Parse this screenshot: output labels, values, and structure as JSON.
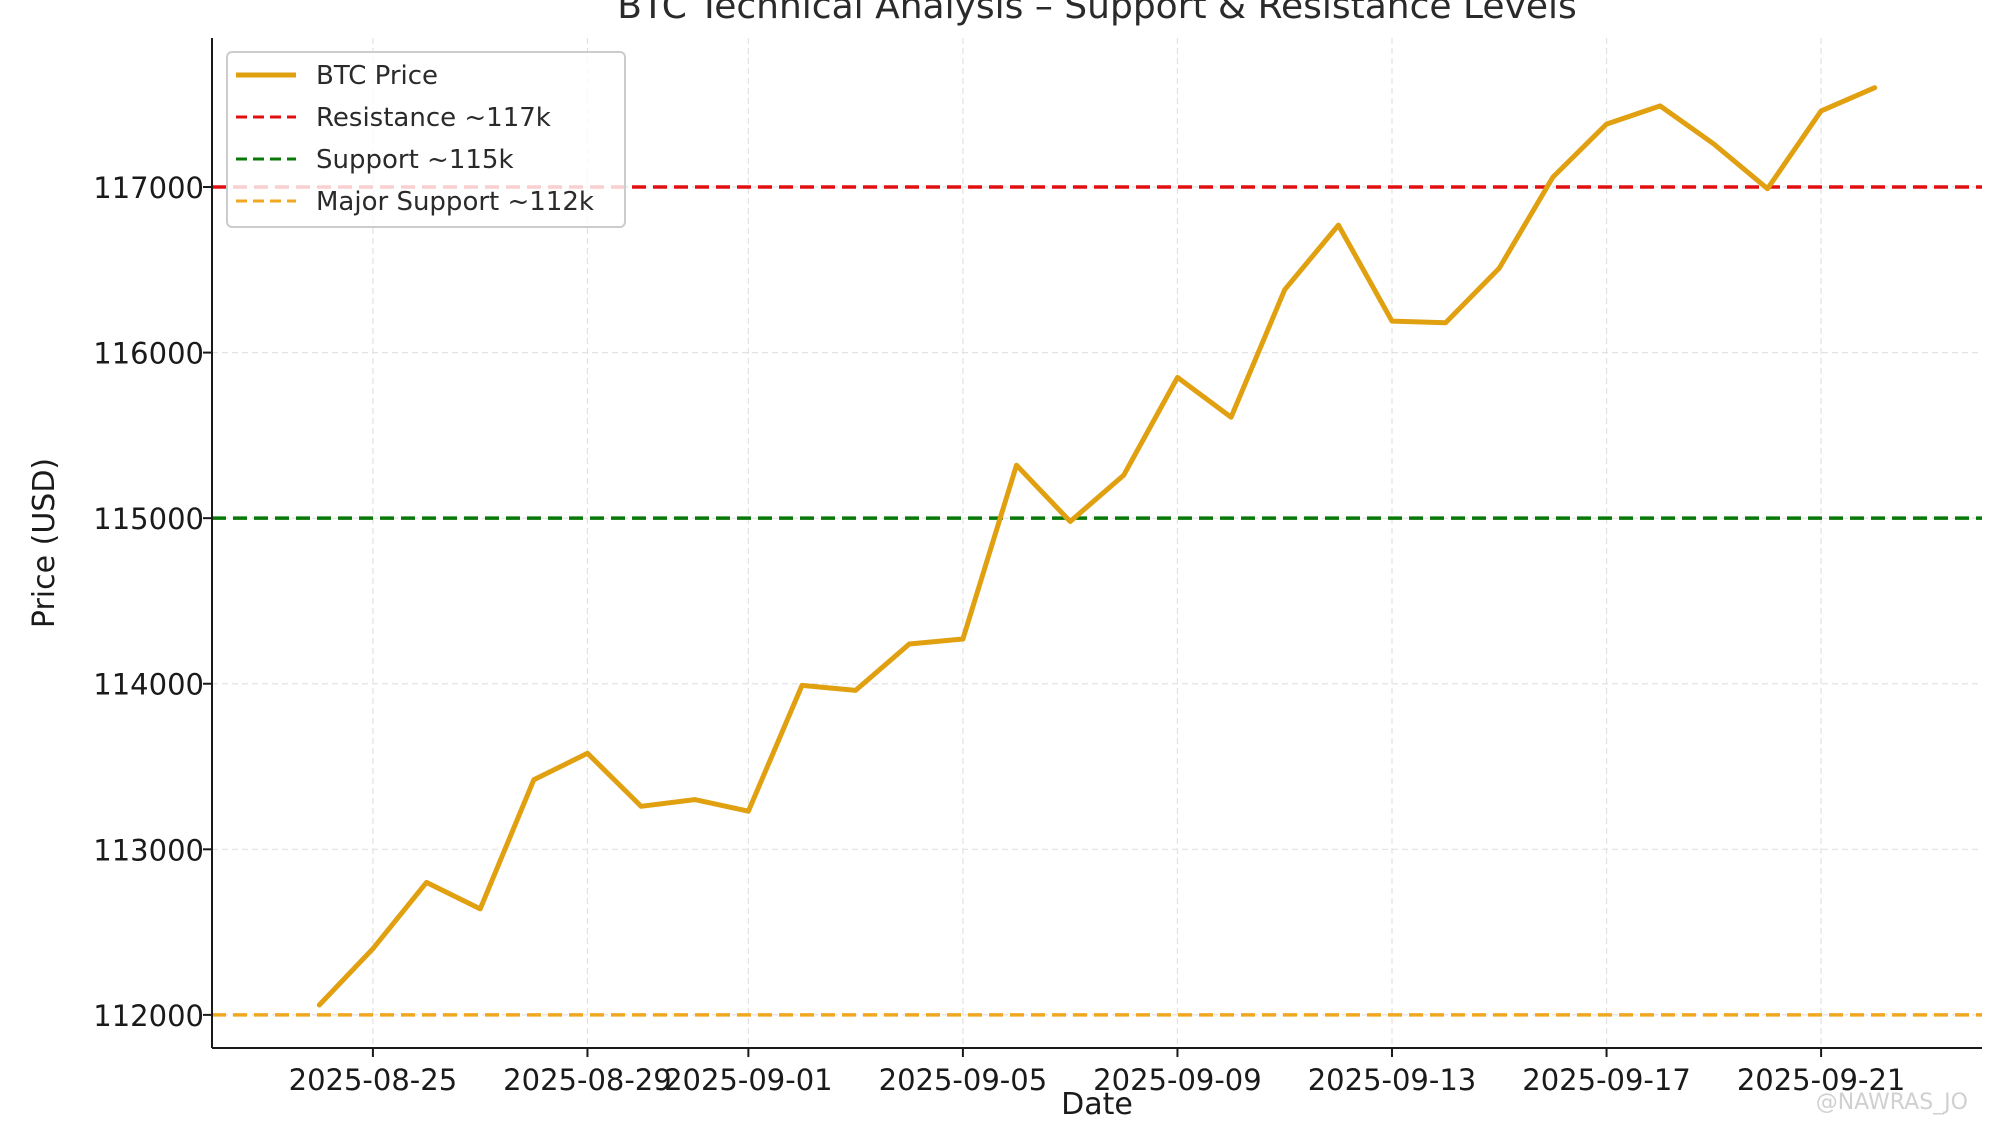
{
  "chart_data": {
    "type": "line",
    "title": "BTC Technical Analysis – Support & Resistance Levels",
    "xlabel": "Date",
    "ylabel": "Price (USD)",
    "x_tick_labels": [
      "2025-08-25",
      "2025-08-29",
      "2025-09-01",
      "2025-09-05",
      "2025-09-09",
      "2025-09-13",
      "2025-09-17",
      "2025-09-21"
    ],
    "y_tick_labels": [
      "112000",
      "113000",
      "114000",
      "115000",
      "116000",
      "117000"
    ],
    "ylim": [
      111800,
      117900
    ],
    "xlim": [
      "2025-08-22",
      "2025-09-24"
    ],
    "grid": true,
    "legend_position": "top-left",
    "series": [
      {
        "name": "BTC Price",
        "color": "#e0a010",
        "style": "solid",
        "x": [
          "2025-08-24",
          "2025-08-25",
          "2025-08-26",
          "2025-08-27",
          "2025-08-28",
          "2025-08-29",
          "2025-08-30",
          "2025-08-31",
          "2025-09-01",
          "2025-09-02",
          "2025-09-03",
          "2025-09-04",
          "2025-09-05",
          "2025-09-06",
          "2025-09-07",
          "2025-09-08",
          "2025-09-09",
          "2025-09-10",
          "2025-09-11",
          "2025-09-12",
          "2025-09-13",
          "2025-09-14",
          "2025-09-15",
          "2025-09-16",
          "2025-09-17",
          "2025-09-18",
          "2025-09-19",
          "2025-09-20",
          "2025-09-21",
          "2025-09-22"
        ],
        "values": [
          112060,
          112400,
          112800,
          112640,
          113420,
          113580,
          113260,
          113300,
          113230,
          113990,
          113960,
          114240,
          114270,
          115320,
          114980,
          115260,
          115850,
          115610,
          116380,
          116770,
          116190,
          116180,
          116510,
          117060,
          117380,
          117490,
          117260,
          116990,
          117460,
          117600
        ]
      },
      {
        "name": "Resistance ~117k",
        "color": "#e01010",
        "style": "dashed",
        "value": 117000
      },
      {
        "name": "Support ~115k",
        "color": "#087808",
        "style": "dashed",
        "value": 115000
      },
      {
        "name": "Major Support ~112k",
        "color": "#f0a820",
        "style": "dashed",
        "value": 112000
      }
    ],
    "watermark": "@NAWRAS_JO"
  }
}
